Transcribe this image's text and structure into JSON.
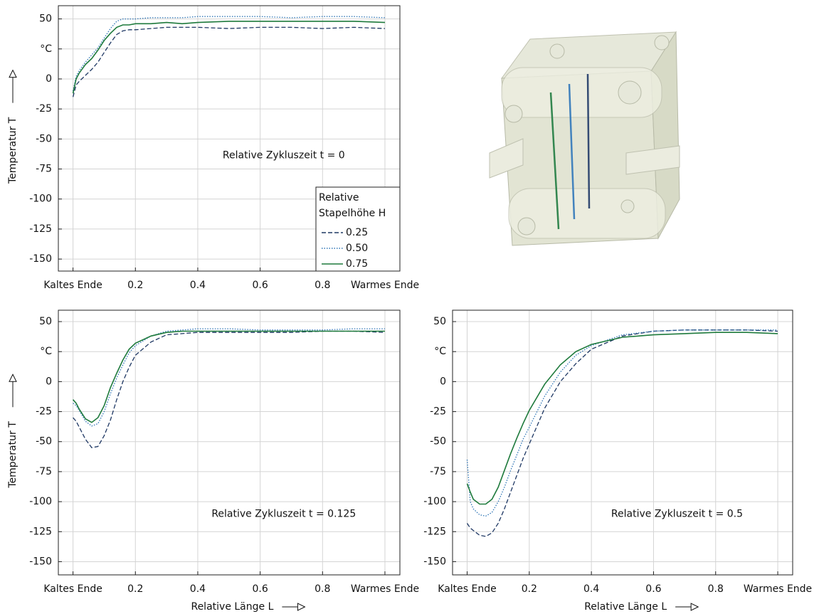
{
  "chart_data": [
    {
      "type": "line",
      "annotation": "Relative Zykluszeit t = 0",
      "y_label": "Temperatur T",
      "legend_title": [
        "Relative",
        "Stapelhöhe H"
      ],
      "legend": "lower right",
      "grid": true,
      "xlim": [
        -0.047,
        1.048
      ],
      "ylim": [
        -160,
        61
      ],
      "xticks": [
        {
          "value": 0,
          "label": "Kaltes Ende"
        },
        0.2,
        0.4,
        0.6,
        0.8,
        {
          "value": 1,
          "label": "Warmes Ende"
        }
      ],
      "yticks": [
        50,
        {
          "value": 25,
          "label": "°C"
        },
        0,
        -25,
        -50,
        -75,
        -100,
        -125,
        -150
      ],
      "x": [
        0,
        0.01,
        0.02,
        0.04,
        0.06,
        0.08,
        0.1,
        0.12,
        0.14,
        0.16,
        0.18,
        0.2,
        0.25,
        0.3,
        0.35,
        0.4,
        0.5,
        0.6,
        0.7,
        0.8,
        0.9,
        1.0
      ],
      "series": [
        {
          "name": "0.25",
          "color": "#1f3864",
          "linestyle": "dashed",
          "values": [
            -15,
            -5,
            -2,
            3,
            8,
            14,
            22,
            30,
            37,
            40,
            41,
            41,
            42,
            43,
            43,
            43,
            42,
            43,
            43,
            42,
            43,
            42
          ]
        },
        {
          "name": "0.50",
          "color": "#2e75b6",
          "linestyle": "dotted",
          "values": [
            -10,
            2,
            7,
            14,
            20,
            26,
            34,
            42,
            48,
            50,
            50,
            50,
            51,
            51,
            51,
            52,
            52,
            52,
            51,
            52,
            52,
            51
          ]
        },
        {
          "name": "0.75",
          "color": "#1e7a3c",
          "linestyle": "solid",
          "values": [
            -12,
            0,
            5,
            12,
            17,
            24,
            32,
            38,
            43,
            45,
            45,
            46,
            46,
            47,
            46,
            47,
            48,
            48,
            48,
            48,
            48,
            47
          ]
        }
      ]
    },
    {
      "type": "line",
      "annotation": "Relative Zykluszeit t = 0.125",
      "y_label": "Temperatur T",
      "x_label": "Relative Länge L",
      "grid": true,
      "xlim": [
        -0.047,
        1.048
      ],
      "ylim": [
        -161,
        59.5
      ],
      "xticks": [
        {
          "value": 0,
          "label": "Kaltes Ende"
        },
        0.2,
        0.4,
        0.6,
        0.8,
        {
          "value": 1,
          "label": "Warmes Ende"
        }
      ],
      "yticks": [
        50,
        {
          "value": 25,
          "label": "°C"
        },
        0,
        -25,
        -50,
        -75,
        -100,
        -125,
        -150
      ],
      "x": [
        0,
        0.01,
        0.02,
        0.04,
        0.06,
        0.08,
        0.1,
        0.12,
        0.14,
        0.16,
        0.18,
        0.2,
        0.25,
        0.3,
        0.35,
        0.4,
        0.5,
        0.6,
        0.7,
        0.8,
        0.9,
        1.0
      ],
      "series": [
        {
          "name": "0.25",
          "color": "#1f3864",
          "linestyle": "dashed",
          "values": [
            -30,
            -33,
            -38,
            -48,
            -55,
            -54,
            -45,
            -32,
            -15,
            0,
            12,
            22,
            33,
            39,
            40,
            41,
            41,
            41,
            41,
            42,
            42,
            41
          ]
        },
        {
          "name": "0.50",
          "color": "#2e75b6",
          "linestyle": "dotted",
          "values": [
            -18,
            -20,
            -24,
            -33,
            -37,
            -35,
            -25,
            -10,
            3,
            14,
            24,
            30,
            38,
            42,
            43,
            44,
            44,
            43,
            43,
            43,
            44,
            44
          ]
        },
        {
          "name": "0.75",
          "color": "#1e7a3c",
          "linestyle": "solid",
          "values": [
            -15,
            -18,
            -23,
            -31,
            -34,
            -30,
            -20,
            -5,
            7,
            18,
            27,
            32,
            38,
            41,
            42,
            42,
            42,
            42,
            42,
            42,
            42,
            42
          ]
        }
      ]
    },
    {
      "type": "line",
      "annotation": "Relative Zykluszeit t = 0.5",
      "x_label": "Relative Länge L",
      "grid": true,
      "xlim": [
        -0.047,
        1.048
      ],
      "ylim": [
        -161,
        59.5
      ],
      "xticks": [
        {
          "value": 0,
          "label": "Kaltes Ende"
        },
        0.2,
        0.4,
        0.6,
        0.8,
        {
          "value": 1,
          "label": "Warmes Ende"
        }
      ],
      "yticks": [
        50,
        {
          "value": 25,
          "label": "°C"
        },
        0,
        -25,
        -50,
        -75,
        -100,
        -125,
        -150
      ],
      "x": [
        0,
        0.01,
        0.02,
        0.04,
        0.06,
        0.08,
        0.1,
        0.12,
        0.14,
        0.16,
        0.18,
        0.2,
        0.25,
        0.3,
        0.35,
        0.4,
        0.5,
        0.6,
        0.7,
        0.8,
        0.9,
        1.0
      ],
      "series": [
        {
          "name": "0.25",
          "color": "#1f3864",
          "linestyle": "dashed",
          "values": [
            -118,
            -122,
            -124,
            -128,
            -129,
            -126,
            -118,
            -106,
            -92,
            -78,
            -64,
            -52,
            -22,
            0,
            15,
            27,
            38,
            42,
            43,
            43,
            43,
            42
          ]
        },
        {
          "name": "0.50",
          "color": "#2e75b6",
          "linestyle": "dotted",
          "values": [
            -65,
            -100,
            -106,
            -111,
            -112,
            -109,
            -100,
            -88,
            -74,
            -61,
            -48,
            -38,
            -12,
            8,
            22,
            30,
            39,
            42,
            43,
            43,
            43,
            43
          ]
        },
        {
          "name": "0.75",
          "color": "#1e7a3c",
          "linestyle": "solid",
          "values": [
            -85,
            -92,
            -98,
            -102,
            -102,
            -98,
            -88,
            -74,
            -60,
            -47,
            -35,
            -24,
            -2,
            14,
            25,
            31,
            37,
            39,
            40,
            41,
            41,
            40
          ]
        }
      ]
    }
  ]
}
